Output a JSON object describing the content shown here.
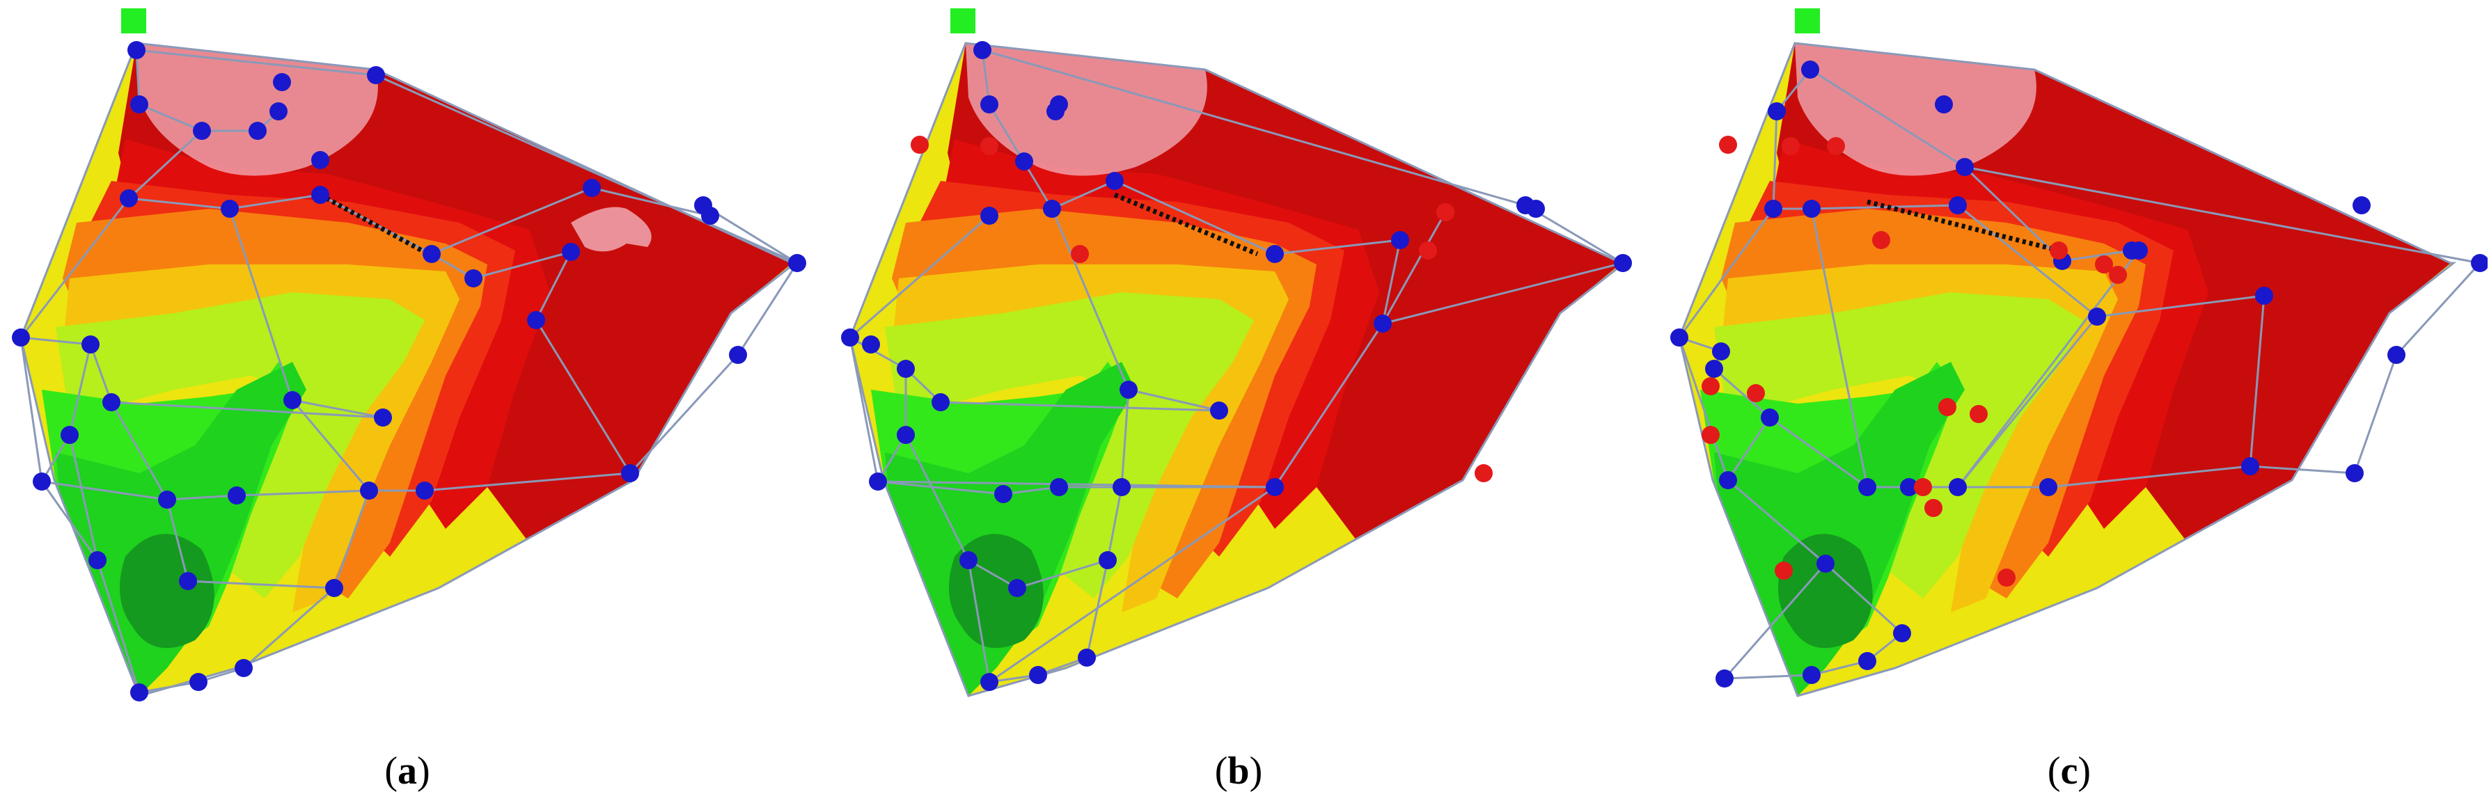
{
  "figure": {
    "colors": {
      "dark_green": "#149a1e",
      "green": "#1ed21e",
      "bright_green": "#33e81a",
      "light_green": "#b6ef1c",
      "yellow": "#ece50f",
      "yellow_orange": "#f5c30d",
      "orange": "#f77f0f",
      "red_orange": "#ef2d12",
      "red": "#e00d0d",
      "dark_red": "#c80c0c",
      "pink_overlay": "#f3b3bd",
      "node_blue": "#1a18cc",
      "node_red": "#e31a1a",
      "source_green": "#22ee22",
      "edge": "#8a99b8"
    },
    "panels": [
      {
        "name": "panel-a",
        "caption_open": "(",
        "caption_letter": "a",
        "caption_close": ")"
      },
      {
        "name": "panel-b",
        "caption_open": "(",
        "caption_letter": "b",
        "caption_close": ")"
      },
      {
        "name": "panel-c",
        "caption_open": "(",
        "caption_letter": "c",
        "caption_close": ")"
      }
    ]
  }
}
